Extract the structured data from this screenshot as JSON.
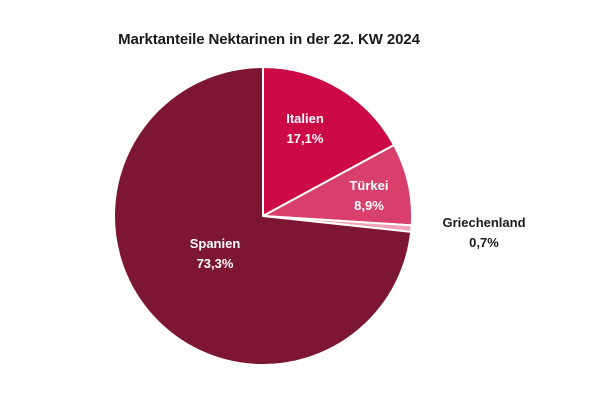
{
  "chart_data": {
    "type": "pie",
    "title": "Marktanteile Nektarinen in der 22. KW 2024",
    "slices": [
      {
        "name": "Italien",
        "value": 17.1,
        "value_label": "17,1%",
        "color": "#cc0a45",
        "label_color": "#ffffff"
      },
      {
        "name": "Türkei",
        "value": 8.9,
        "value_label": "8,9%",
        "color": "#d93f6c",
        "label_color": "#ffffff"
      },
      {
        "name": "Griechenland",
        "value": 0.7,
        "value_label": "0,7%",
        "color": "#f0a3b8",
        "label_color": "#1a1a1a"
      },
      {
        "name": "Spanien",
        "value": 73.3,
        "value_label": "73,3%",
        "color": "#7d1633",
        "label_color": "#ffffff"
      }
    ],
    "start": "12 o'clock",
    "direction": "clockwise"
  }
}
